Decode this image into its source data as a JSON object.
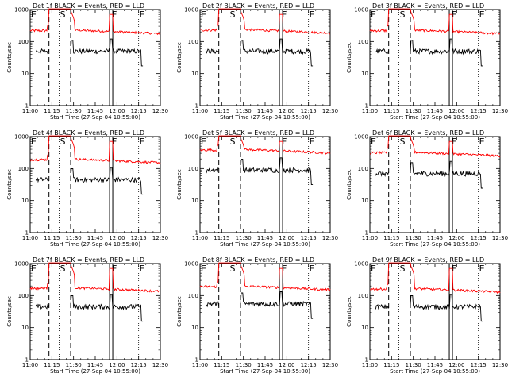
{
  "chart_data": {
    "type": "line",
    "y_scale": "log",
    "ylim": [
      1,
      1000
    ],
    "xlim": [
      "11:00",
      "12:30"
    ],
    "x_tick_labels": [
      "11:00",
      "11:15",
      "11:30",
      "11:45",
      "12:00",
      "12:15",
      "12:30"
    ],
    "y_tick_labels": [
      "1",
      "10",
      "100",
      "1000"
    ],
    "xlabel": "Start Time (27-Sep-04 10:55:00)",
    "ylabel": "Counts/sec",
    "colors": {
      "events": "#000000",
      "lld": "#ff0000"
    },
    "markers": [
      {
        "label": "E",
        "time": "11:00",
        "style": "dotted"
      },
      {
        "label": "S",
        "time": "11:20",
        "style": "dotted"
      },
      {
        "label": "",
        "time": "11:13",
        "style": "dashed"
      },
      {
        "label": "",
        "time": "11:28",
        "style": "dashed"
      },
      {
        "label": "F",
        "time": "11:56",
        "style": "solid-pair"
      },
      {
        "label": "E",
        "time": "12:15",
        "style": "dotted"
      }
    ],
    "panels": [
      {
        "title": "Det 1f BLACK = Events, RED = LLD",
        "lld_level": 220,
        "events_level": 50,
        "peak_lld": 1000
      },
      {
        "title": "Det 2f BLACK = Events, RED = LLD",
        "lld_level": 230,
        "events_level": 50,
        "peak_lld": 1000
      },
      {
        "title": "Det 3f BLACK = Events, RED = LLD",
        "lld_level": 220,
        "events_level": 50,
        "peak_lld": 1000
      },
      {
        "title": "Det 4f BLACK = Events, RED = LLD",
        "lld_level": 190,
        "events_level": 45,
        "peak_lld": 1000
      },
      {
        "title": "Det 5f BLACK = Events, RED = LLD",
        "lld_level": 380,
        "events_level": 90,
        "peak_lld": 1000
      },
      {
        "title": "Det 6f BLACK = Events, RED = LLD",
        "lld_level": 310,
        "events_level": 70,
        "peak_lld": 1000
      },
      {
        "title": "Det 7f BLACK = Events, RED = LLD",
        "lld_level": 170,
        "events_level": 45,
        "peak_lld": 1000
      },
      {
        "title": "Det 8f BLACK = Events, RED = LLD",
        "lld_level": 190,
        "events_level": 55,
        "peak_lld": 1000
      },
      {
        "title": "Det 9f BLACK = Events, RED = LLD",
        "lld_level": 160,
        "events_level": 45,
        "peak_lld": 1000
      }
    ]
  }
}
